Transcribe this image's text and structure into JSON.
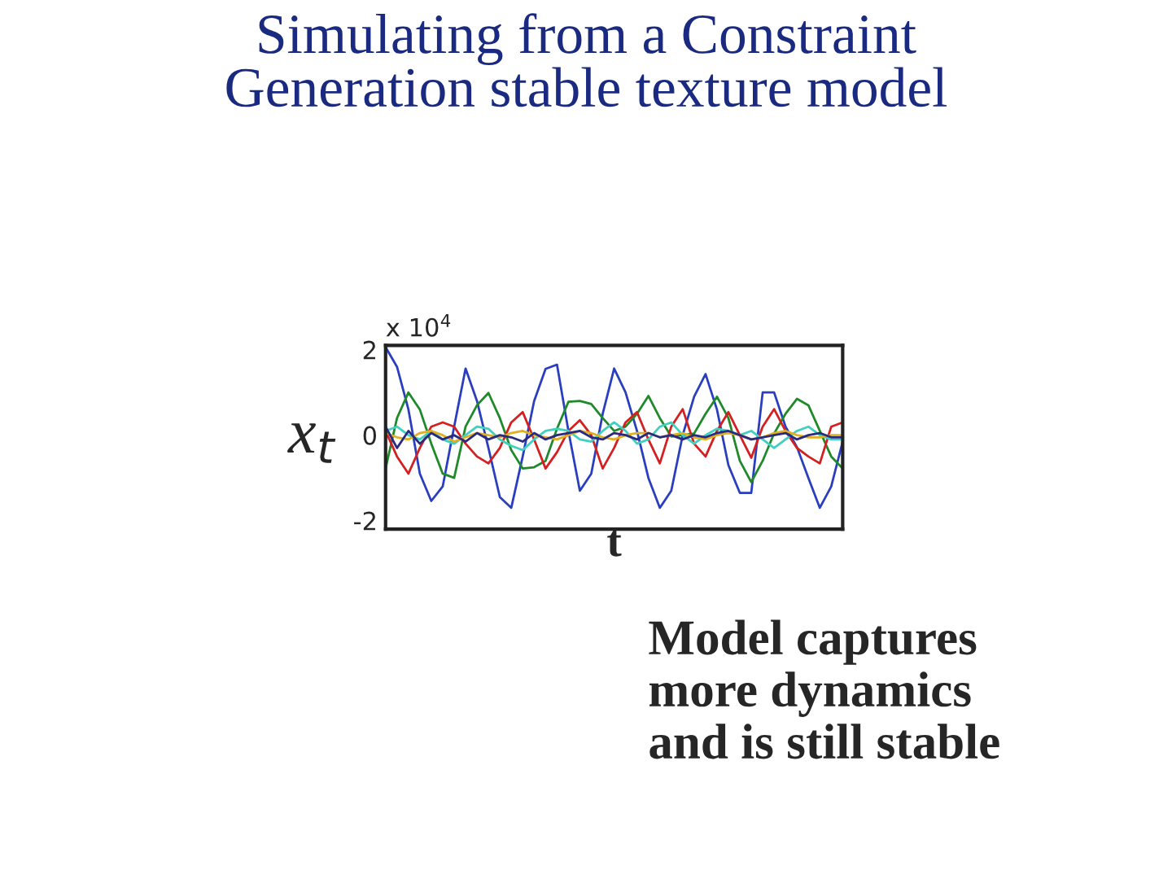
{
  "chart_data": {
    "type": "line",
    "title": "Simulating from a Constraint\nGeneration stable texture model",
    "xlabel": "t",
    "ylabel": "x$_{t}$",
    "annotations": [
      "x 10$^{4}$",
      "Model captures\nmore dynamics\nand is still stable"
    ],
    "categories": [
      null,
      null,
      null,
      null,
      null,
      null,
      null,
      null,
      null,
      null,
      null,
      null,
      null,
      null,
      null,
      null,
      null,
      null,
      null,
      null,
      null,
      null,
      null,
      null,
      null,
      null,
      null,
      null,
      null,
      null,
      null,
      null,
      null,
      null,
      null,
      null,
      null,
      null,
      null,
      null,
      null
    ],
    "ylim": [
      -2.2,
      2.1
    ],
    "yticks": [
      -2,
      0,
      2
    ],
    "tick_labels": "y",
    "grid": false,
    "legend": false,
    "series": [
      {
        "color": "#2a3fbf",
        "values": [
          2.06,
          1.6,
          0.6,
          -0.9,
          -1.54,
          -1.2,
          0.2,
          1.56,
          0.8,
          -0.3,
          -1.45,
          -1.7,
          -0.5,
          0.8,
          1.55,
          1.65,
          0.1,
          -1.3,
          -0.9,
          0.5,
          1.56,
          1.0,
          0.1,
          -1.0,
          -1.7,
          -1.3,
          0,
          0.9,
          1.43,
          0.6,
          -0.7,
          -1.35,
          -1.35,
          1.0,
          1.0,
          0.2,
          -0.28,
          -1.0,
          -1.7,
          -1.2,
          -0.15
        ]
      },
      {
        "color": "#1f8a2a",
        "values": [
          -0.78,
          0.4,
          1.0,
          0.6,
          -0.2,
          -0.9,
          -1.0,
          0.2,
          0.7,
          0.99,
          0.4,
          -0.35,
          -0.78,
          -0.75,
          -0.6,
          0.15,
          0.78,
          0.8,
          0.73,
          0.4,
          0.1,
          0.2,
          0.5,
          0.92,
          0.4,
          -0.03,
          0.0,
          0.04,
          0.5,
          0.9,
          0.4,
          -0.6,
          -1.1,
          -0.6,
          0.04,
          0.5,
          0.85,
          0.7,
          0.1,
          -0.5,
          -0.78
        ]
      },
      {
        "color": "#d42020",
        "values": [
          0.1,
          -0.5,
          -0.9,
          -0.3,
          0.2,
          0.3,
          0.2,
          -0.2,
          -0.5,
          -0.66,
          -0.3,
          0.3,
          0.54,
          -0.1,
          -0.78,
          -0.4,
          0.1,
          0.35,
          0.0,
          -0.78,
          -0.3,
          0.3,
          0.54,
          -0.1,
          -0.66,
          0.2,
          0.61,
          -0.2,
          -0.5,
          0.1,
          0.54,
          0.0,
          -0.53,
          0.2,
          0.61,
          0.1,
          -0.3,
          -0.5,
          -0.66,
          0.2,
          0.3
        ]
      },
      {
        "color": "#40d0c0",
        "values": [
          0.1,
          0.2,
          0.0,
          -0.1,
          0.1,
          -0.1,
          -0.2,
          0.0,
          0.2,
          0.15,
          -0.1,
          -0.25,
          -0.35,
          -0.1,
          0.1,
          0.15,
          0.1,
          -0.1,
          -0.15,
          0.1,
          0.3,
          0.1,
          -0.2,
          -0.1,
          0.2,
          0.3,
          0.0,
          -0.2,
          0.0,
          0.15,
          0.1,
          0.0,
          0.1,
          -0.1,
          -0.3,
          -0.1,
          0.1,
          0.2,
          0.0,
          -0.1,
          -0.1
        ]
      },
      {
        "color": "#e0b020",
        "values": [
          0.05,
          -0.05,
          -0.1,
          0.05,
          0.1,
          0.0,
          -0.15,
          -0.05,
          0.05,
          0.0,
          -0.05,
          0.05,
          0.1,
          0.0,
          -0.05,
          -0.1,
          0.0,
          0.1,
          0.05,
          -0.05,
          -0.1,
          0.0,
          0.05,
          0.05,
          -0.05,
          0.0,
          0.05,
          -0.05,
          -0.1,
          0.0,
          0.05,
          0.0,
          -0.1,
          -0.05,
          0.05,
          0.1,
          0.0,
          -0.05,
          -0.05,
          0.0,
          0.0
        ]
      },
      {
        "color": "#2a2a80",
        "values": [
          0.2,
          -0.3,
          0.1,
          -0.2,
          0.05,
          -0.1,
          0.0,
          -0.15,
          0.05,
          -0.1,
          0.0,
          -0.05,
          -0.15,
          0.05,
          -0.1,
          0.0,
          0.05,
          0.1,
          -0.05,
          -0.1,
          0.05,
          0.0,
          -0.1,
          0.05,
          -0.05,
          0.0,
          -0.1,
          0.0,
          -0.05,
          0.05,
          0.1,
          0.0,
          -0.1,
          -0.05,
          0.0,
          0.05,
          -0.1,
          0.0,
          0.05,
          -0.05,
          -0.05
        ]
      }
    ]
  }
}
